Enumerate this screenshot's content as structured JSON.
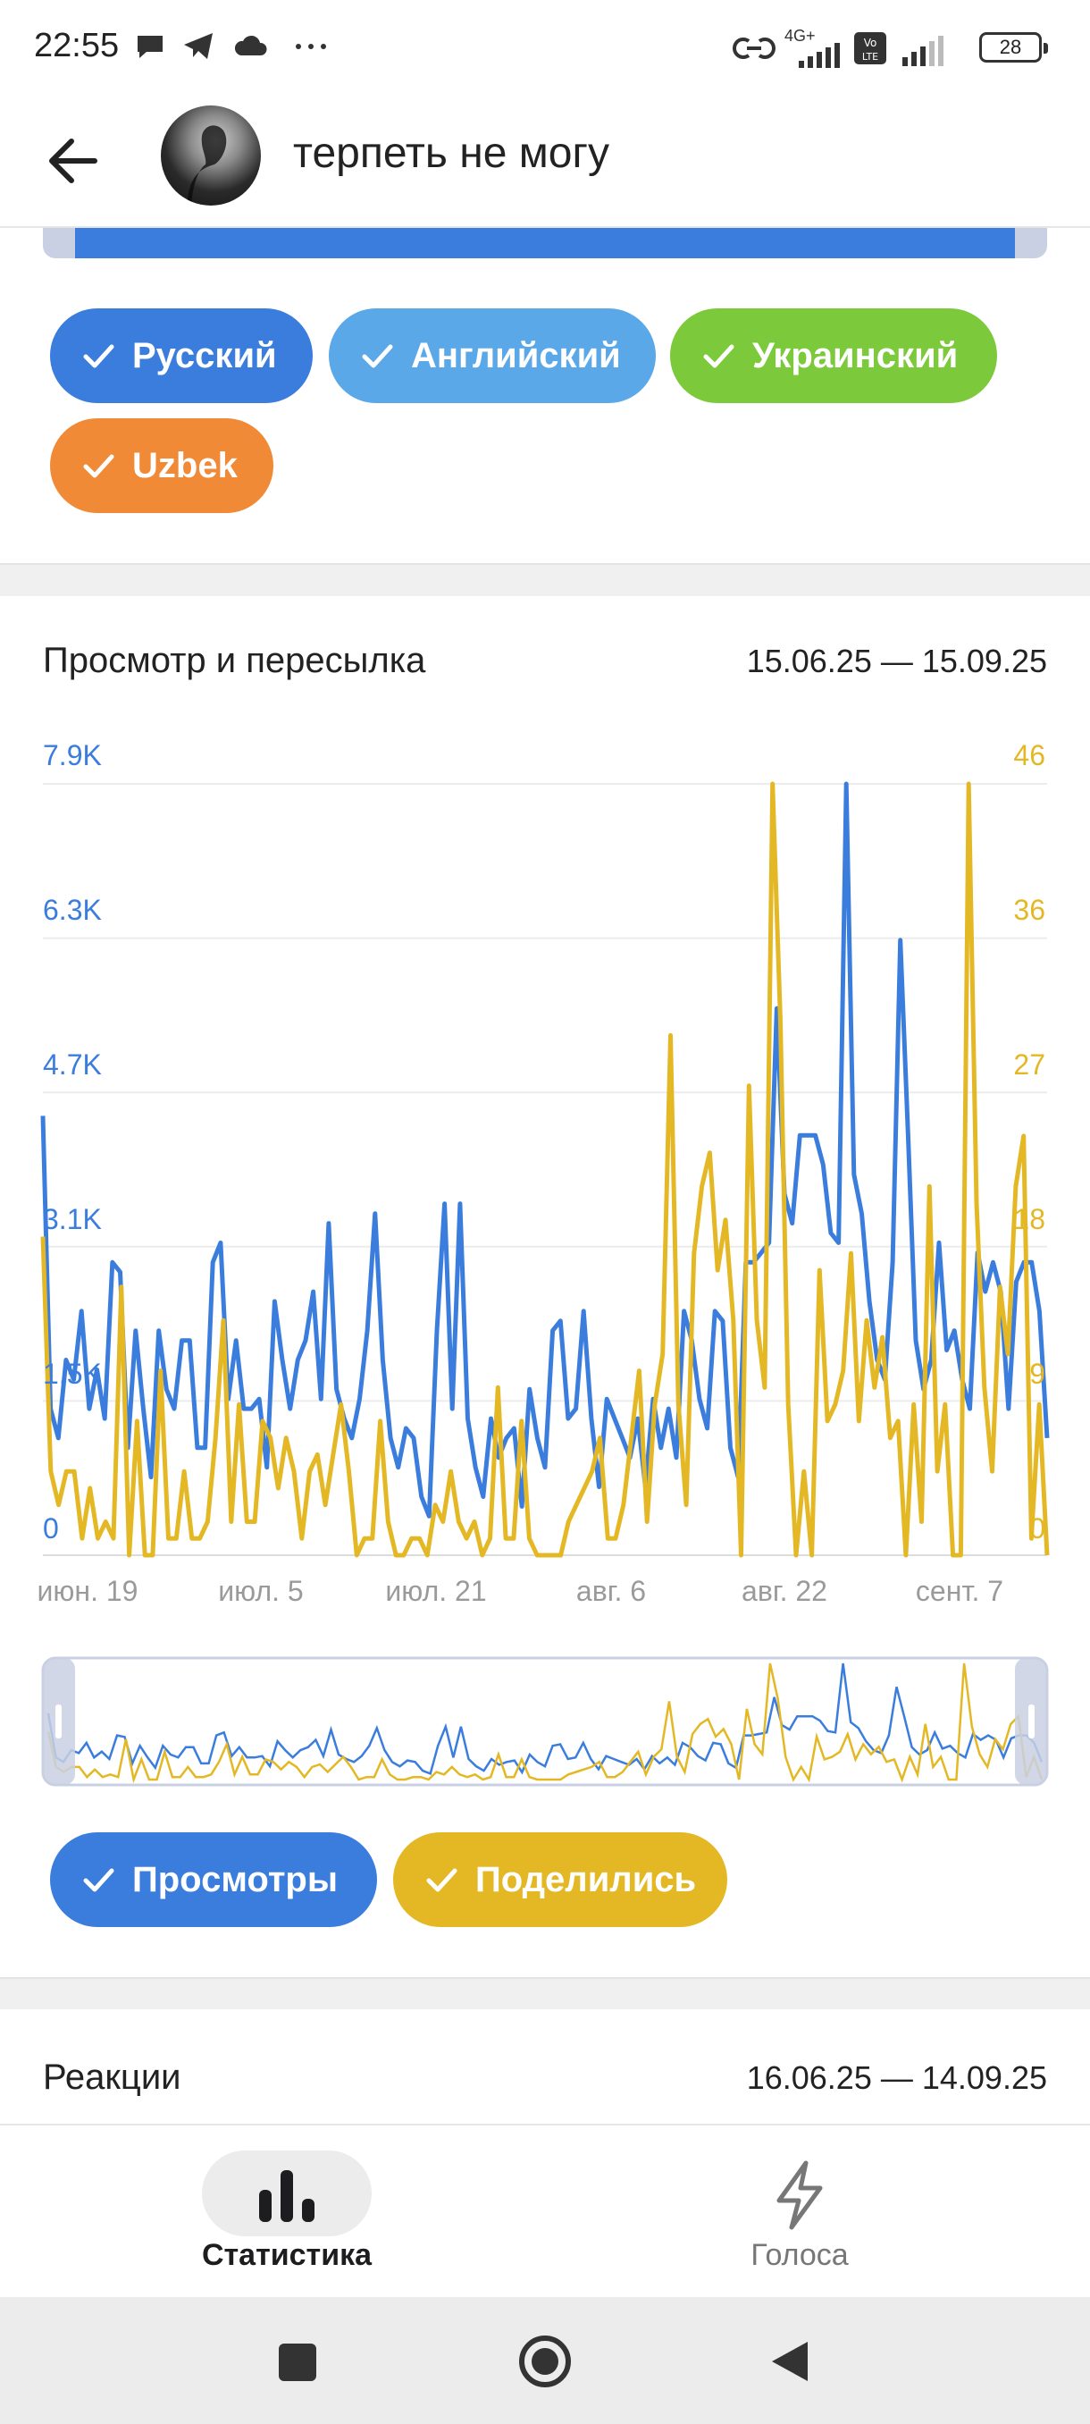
{
  "status_bar": {
    "time": "22:55",
    "network": "4G+",
    "battery": "28"
  },
  "header": {
    "title": "терпеть не могу"
  },
  "language_chips": [
    {
      "label": "Русский",
      "color": "#3b7ddd"
    },
    {
      "label": "Английский",
      "color": "#5aa8e8"
    },
    {
      "label": "Украинский",
      "color": "#7cc93c"
    },
    {
      "label": "Uzbek",
      "color": "#f08a36"
    }
  ],
  "views_card": {
    "title": "Просмотр и пересылка",
    "date_range": "15.06.25 — 15.09.25",
    "legend": [
      {
        "label": "Просмотры",
        "color": "#3b7ddd"
      },
      {
        "label": "Поделились",
        "color": "#e4b825"
      }
    ]
  },
  "reactions_card": {
    "title": "Реакции",
    "date_range": "16.06.25 — 14.09.25"
  },
  "bottom_nav": {
    "items": [
      {
        "label": "Статистика",
        "icon": "bar-chart-icon",
        "active": true
      },
      {
        "label": "Голоса",
        "icon": "lightning-icon",
        "active": false
      }
    ]
  },
  "chart_data": {
    "type": "line",
    "x_tick_labels": [
      "июн. 19",
      "июл. 5",
      "июл. 21",
      "авг. 6",
      "авг. 22",
      "сент. 7"
    ],
    "y_left": {
      "ticks": [
        "0",
        "1.5K",
        "3.1K",
        "4.7K",
        "6.3K",
        "7.9K"
      ],
      "max": 7900,
      "color": "#3b7ddd"
    },
    "y_right": {
      "ticks": [
        "0",
        "9",
        "18",
        "27",
        "36",
        "46"
      ],
      "max": 46,
      "color": "#e4b825"
    },
    "grid": true,
    "series": [
      {
        "name": "Просмотры",
        "axis": "left",
        "color": "#3b7ddd",
        "values": [
          4500,
          1500,
          1200,
          2000,
          1800,
          2500,
          1500,
          1900,
          1400,
          3000,
          2900,
          1100,
          2300,
          1500,
          800,
          2300,
          1700,
          1500,
          2200,
          2200,
          1100,
          1100,
          3000,
          3200,
          1600,
          2200,
          1500,
          1500,
          1600,
          900,
          2600,
          2000,
          1500,
          2000,
          2200,
          2700,
          1600,
          3400,
          1700,
          1400,
          1200,
          1600,
          2300,
          3500,
          2000,
          1200,
          900,
          1300,
          1200,
          600,
          400,
          2300,
          3600,
          1500,
          3600,
          1400,
          900,
          600,
          1400,
          1000,
          1200,
          1300,
          500,
          1700,
          1200,
          900,
          2300,
          2400,
          1400,
          1500,
          2500,
          1400,
          700,
          1600,
          1400,
          1200,
          1000,
          1400,
          700,
          1600,
          1100,
          1500,
          1000,
          2500,
          2200,
          1600,
          1300,
          2500,
          2400,
          1100,
          800,
          3000,
          3000,
          3100,
          3200,
          5600,
          3700,
          3400,
          4300,
          4300,
          4300,
          4000,
          3300,
          3200,
          7900,
          3900,
          3500,
          2600,
          2000,
          1800,
          3000,
          6300,
          4300,
          2200,
          1700,
          2000,
          3200,
          2100,
          2300,
          1800,
          1500,
          3100,
          2700,
          3000,
          2700,
          1500,
          2800,
          3000,
          3000,
          2500,
          1200
        ]
      },
      {
        "name": "Поделились",
        "axis": "right",
        "color": "#e4b825",
        "values": [
          19,
          5,
          3,
          5,
          5,
          1,
          4,
          1,
          2,
          1,
          16,
          0,
          8,
          0,
          0,
          11,
          1,
          1,
          5,
          1,
          1,
          2,
          7,
          14,
          2,
          9,
          2,
          2,
          8,
          7,
          4,
          7,
          5,
          1,
          5,
          6,
          3,
          6,
          9,
          5,
          0,
          1,
          1,
          8,
          2,
          0,
          0,
          1,
          1,
          0,
          3,
          2,
          5,
          2,
          1,
          2,
          0,
          1,
          10,
          1,
          1,
          8,
          1,
          0,
          0,
          0,
          0,
          2,
          3,
          4,
          5,
          7,
          1,
          1,
          3,
          7,
          11,
          2,
          9,
          12,
          31,
          9,
          3,
          18,
          22,
          24,
          17,
          20,
          14,
          0,
          28,
          14,
          10,
          46,
          32,
          9,
          0,
          5,
          0,
          17,
          8,
          9,
          11,
          18,
          8,
          14,
          10,
          13,
          7,
          8,
          0,
          9,
          2,
          22,
          5,
          9,
          0,
          0,
          46,
          21,
          10,
          5,
          16,
          12,
          22,
          25,
          1,
          9,
          0
        ]
      }
    ]
  }
}
